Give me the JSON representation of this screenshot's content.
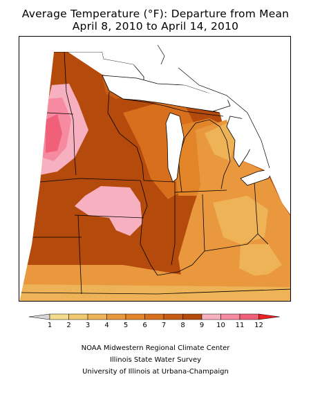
{
  "title": {
    "line1": "Average Temperature (°F): Departure from Mean",
    "line2": "April 8, 2010 to April 14, 2010"
  },
  "legend": {
    "tick_labels": [
      "1",
      "2",
      "3",
      "4",
      "5",
      "6",
      "7",
      "8",
      "9",
      "10",
      "11",
      "12"
    ],
    "colors": {
      "below_1": "#d6d6d6",
      "1_2": "#f2dc8c",
      "2_3": "#f0c86e",
      "3_4": "#eeb257",
      "4_5": "#e9983e",
      "5_6": "#e28428",
      "6_7": "#d86f1c",
      "7_8": "#c75c14",
      "8_9": "#b44a0c",
      "9_10": "#f7b0c0",
      "10_11": "#f58aa0",
      "11_12": "#f06078",
      "above_12": "#ee2222"
    }
  },
  "credits": {
    "line1": "NOAA Midwestern Regional Climate Center",
    "line2": "Illinois State Water Survey",
    "line3": "University of Illinois at Urbana-Champaign"
  }
}
